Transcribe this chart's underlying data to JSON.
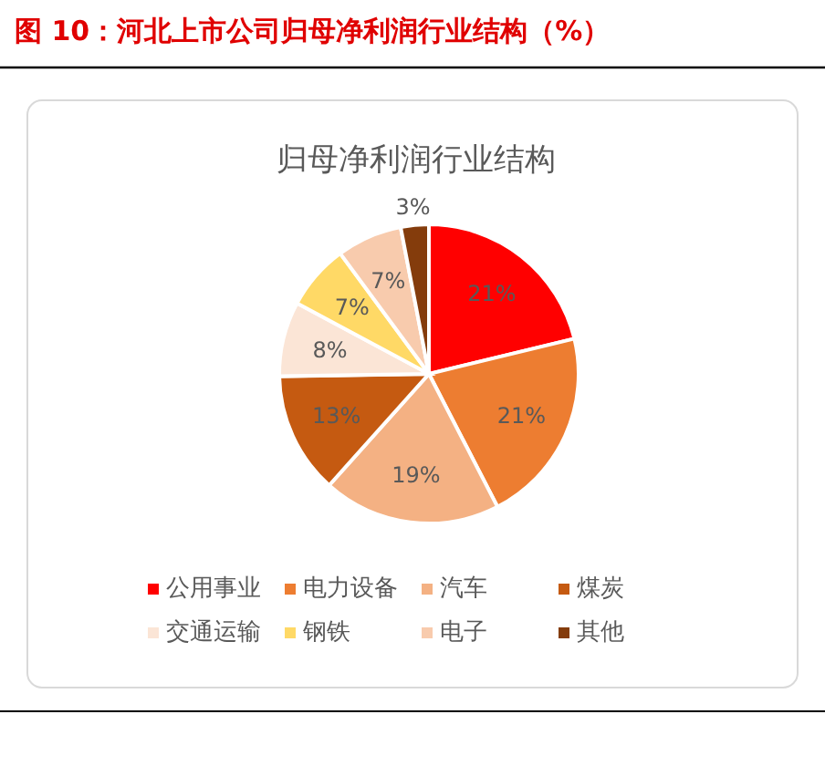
{
  "chart_data": {
    "type": "pie",
    "title": "图 10：河北上市公司归母净利润行业结构（%）",
    "subtitle": "归母净利润行业结构",
    "categories": [
      "公用事业",
      "电力设备",
      "汽车",
      "煤炭",
      "交通运输",
      "钢铁",
      "电子",
      "其他"
    ],
    "values": [
      21,
      21,
      19,
      13,
      8,
      7,
      7,
      3
    ],
    "colors": [
      "#ff0000",
      "#ed7d31",
      "#f4b183",
      "#c55a11",
      "#fbe5d6",
      "#ffd966",
      "#f8cbad",
      "#843c0c"
    ],
    "value_labels": [
      "21%",
      "21%",
      "19%",
      "13%",
      "8%",
      "7%",
      "7%",
      "3%"
    ],
    "legend": "bottom"
  }
}
